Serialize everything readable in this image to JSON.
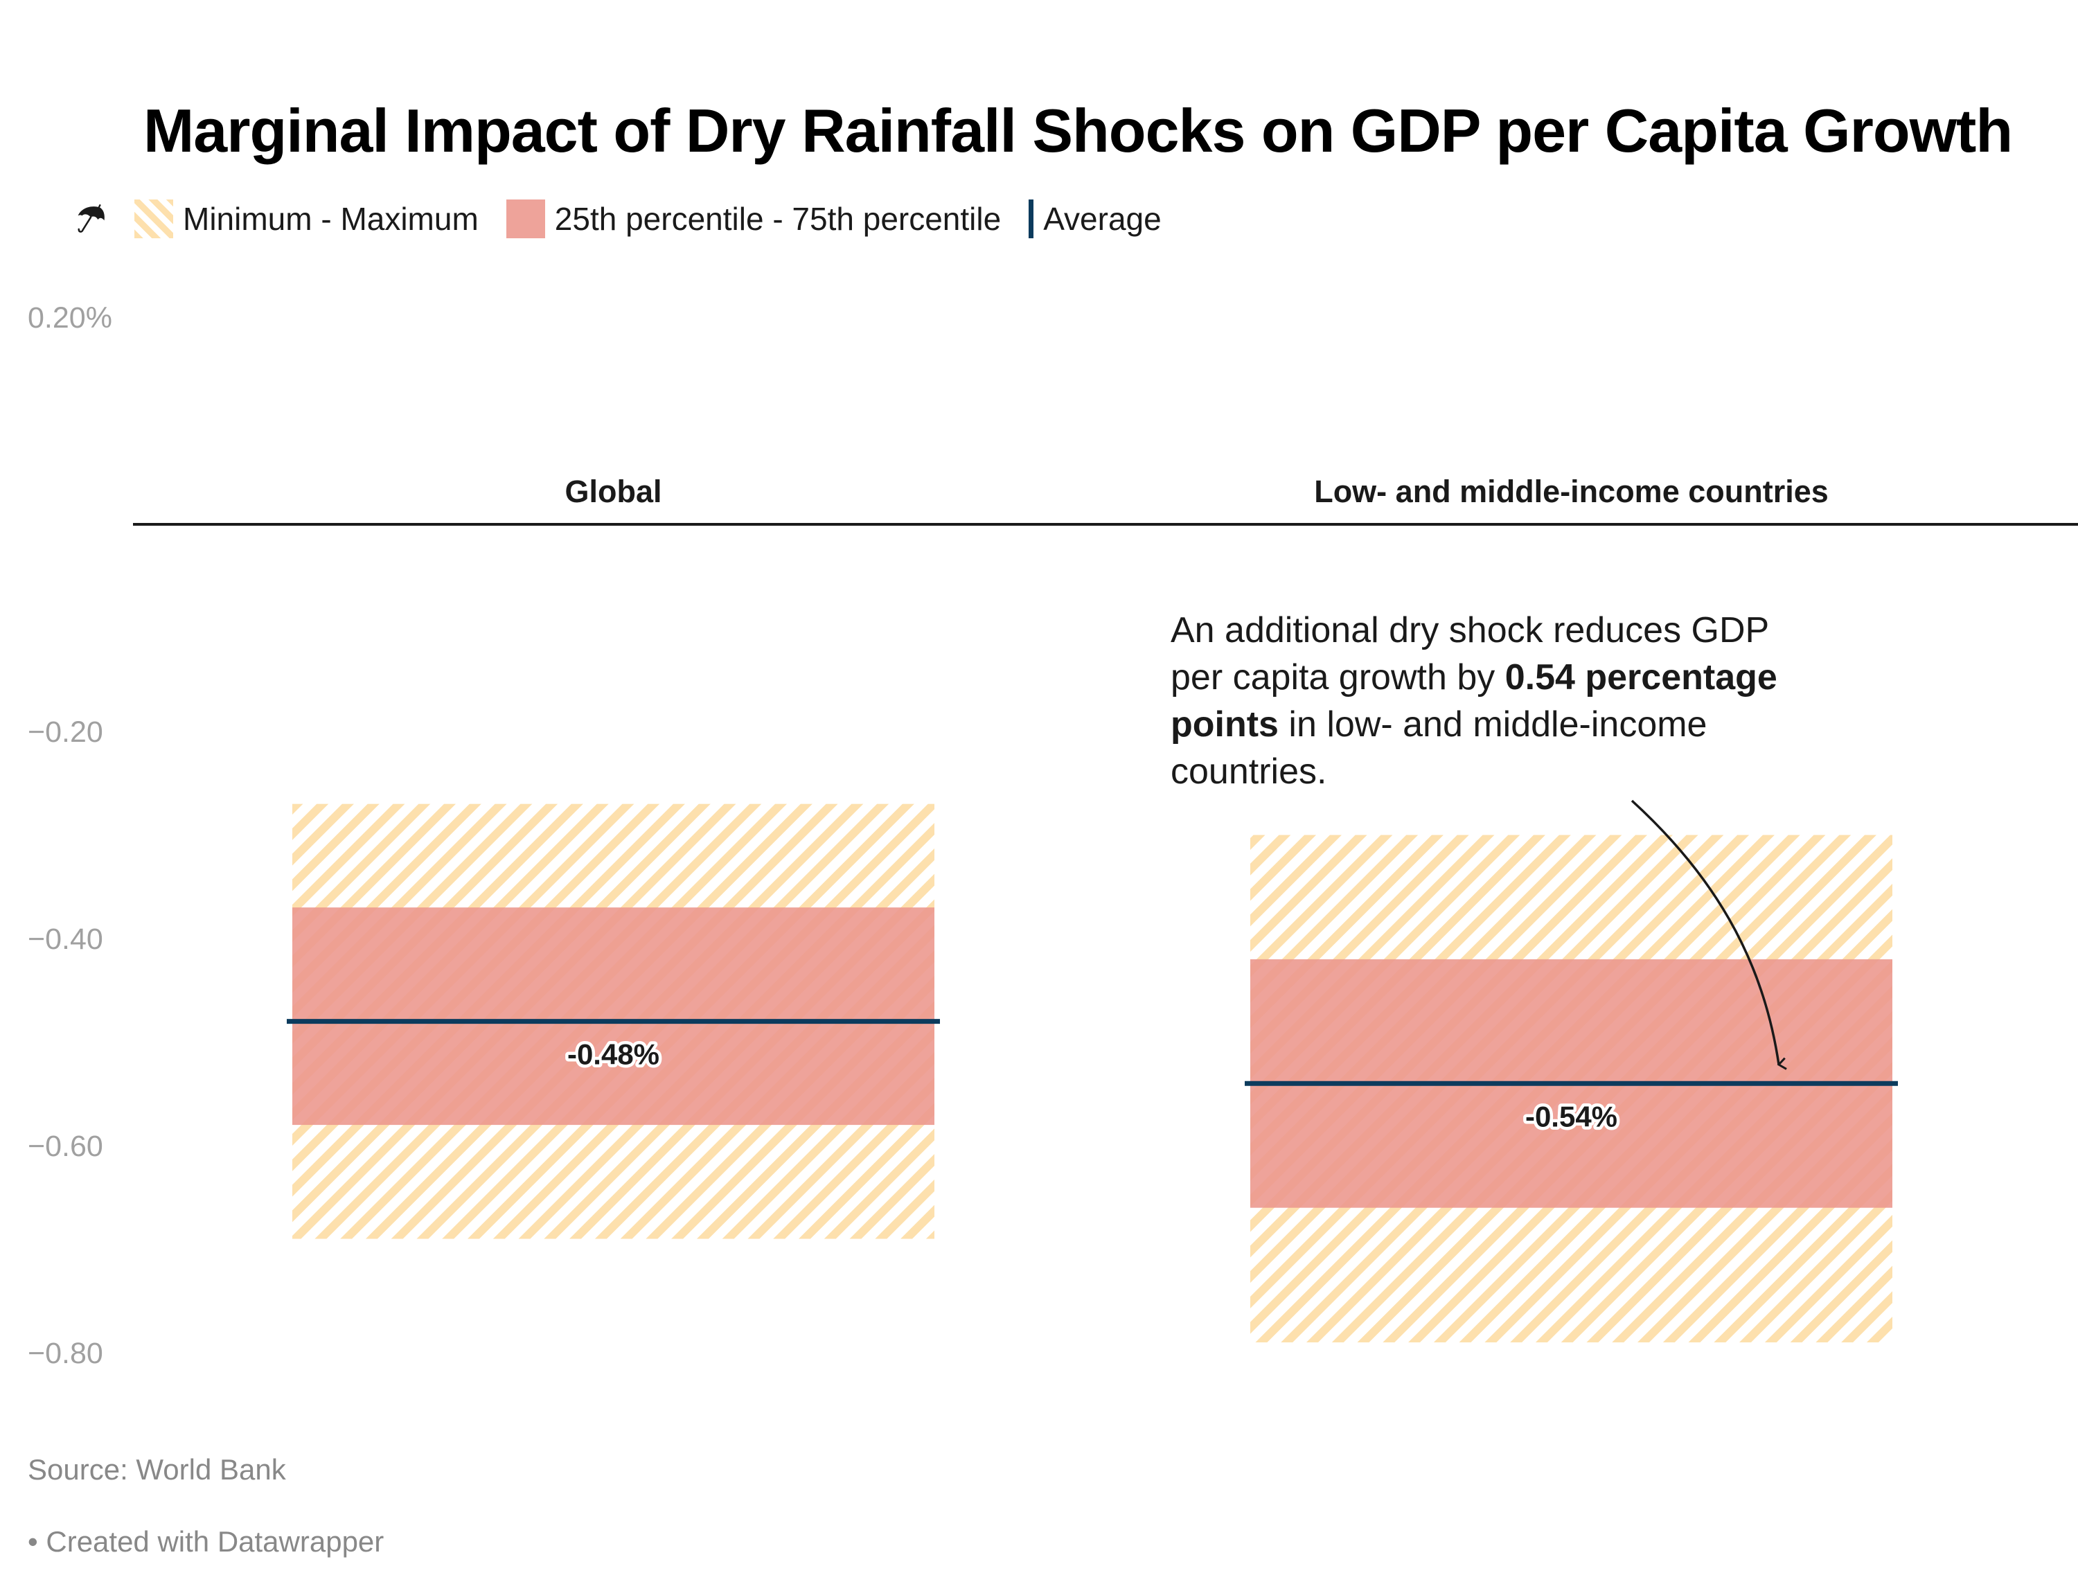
{
  "title": "Marginal Impact of Dry Rainfall Shocks on GDP per Capita Growth",
  "legend": {
    "icon": "umbrella-icon",
    "items": [
      {
        "label": "Minimum - Maximum",
        "swatch": "hatch",
        "color": "#fde0ad"
      },
      {
        "label": "25th percentile - 75th percentile",
        "swatch": "fill",
        "color": "#eea39a"
      },
      {
        "label": "Average",
        "swatch": "line",
        "color": "#0c3b5d"
      }
    ]
  },
  "annotation": {
    "pre": "An additional dry shock reduces GDP per capita growth by ",
    "bold": "0.54 percentage points",
    "post": " in low- and middle-income countries."
  },
  "footer": {
    "source": "Source: World Bank",
    "credit": "• Created with Datawrapper"
  },
  "chart_data": {
    "type": "range-bar",
    "title": "Marginal Impact of Dry Rainfall Shocks on GDP per Capita Growth",
    "xlabel": "",
    "ylabel": "",
    "ylim": [
      -0.8,
      0.2
    ],
    "yticks": [
      {
        "value": 0.2,
        "label": "0.20%"
      },
      {
        "value": -0.2,
        "label": "−0.20"
      },
      {
        "value": -0.4,
        "label": "−0.40"
      },
      {
        "value": -0.6,
        "label": "−0.60"
      },
      {
        "value": -0.8,
        "label": "−0.80"
      }
    ],
    "grid": false,
    "baseline": 0,
    "legend_position": "top-left",
    "categories": [
      "Global",
      "Low- and middle-income countries"
    ],
    "series": [
      {
        "name": "Minimum",
        "values": [
          -0.69,
          -0.79
        ]
      },
      {
        "name": "Maximum",
        "values": [
          -0.27,
          -0.3
        ]
      },
      {
        "name": "25th percentile",
        "values": [
          -0.58,
          -0.66
        ]
      },
      {
        "name": "75th percentile",
        "values": [
          -0.37,
          -0.42
        ]
      },
      {
        "name": "Average",
        "values": [
          -0.48,
          -0.54
        ]
      }
    ],
    "value_labels": [
      "-0.48%",
      "-0.54%"
    ],
    "colors": {
      "range": "#fde0ad",
      "iqr": "#eea39a",
      "average": "#0c3b5d",
      "baseline": "#1a1a1a"
    }
  }
}
